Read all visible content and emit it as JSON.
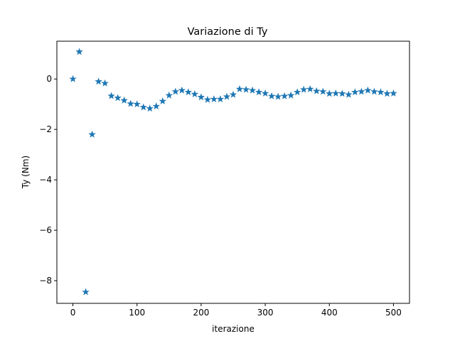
{
  "chart_data": {
    "type": "scatter",
    "title": "Variazione di Ty",
    "xlabel": "iterazione",
    "ylabel": "Ty (Nm)",
    "xlim": [
      -25,
      525
    ],
    "ylim": [
      -8.9,
      1.5
    ],
    "xticks": [
      0,
      100,
      200,
      300,
      400,
      500
    ],
    "yticks": [
      0,
      -2,
      -4,
      -6,
      -8
    ],
    "grid": false,
    "legend": "none",
    "marker": "star",
    "color": "#1f77b4",
    "series": [
      {
        "x": [
          0,
          10,
          20,
          30,
          40,
          50,
          60,
          70,
          80,
          90,
          100,
          110,
          120,
          130,
          140,
          150,
          160,
          170,
          180,
          190,
          200,
          210,
          220,
          230,
          240,
          250,
          260,
          270,
          280,
          290,
          300,
          310,
          320,
          330,
          340,
          350,
          360,
          370,
          380,
          390,
          400,
          410,
          420,
          430,
          440,
          450,
          460,
          470,
          480,
          490,
          500
        ],
        "y": [
          0.0,
          1.08,
          -8.45,
          -2.2,
          -0.1,
          -0.17,
          -0.67,
          -0.75,
          -0.85,
          -0.98,
          -1.0,
          -1.12,
          -1.17,
          -1.08,
          -0.88,
          -0.65,
          -0.5,
          -0.45,
          -0.52,
          -0.6,
          -0.72,
          -0.82,
          -0.8,
          -0.8,
          -0.7,
          -0.62,
          -0.4,
          -0.42,
          -0.45,
          -0.52,
          -0.57,
          -0.68,
          -0.7,
          -0.68,
          -0.65,
          -0.52,
          -0.42,
          -0.4,
          -0.48,
          -0.5,
          -0.58,
          -0.57,
          -0.58,
          -0.62,
          -0.52,
          -0.5,
          -0.45,
          -0.5,
          -0.52,
          -0.58,
          -0.57
        ]
      }
    ]
  }
}
